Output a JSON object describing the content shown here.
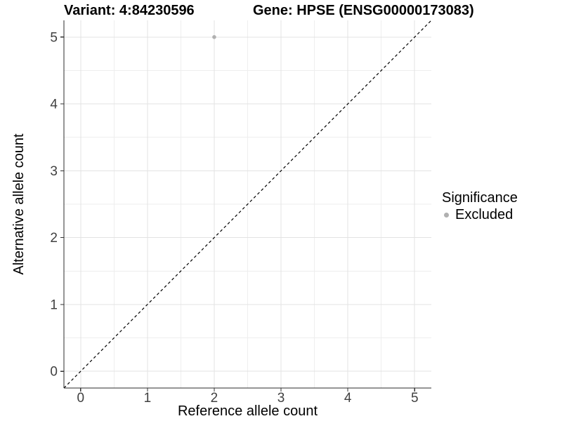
{
  "header": {
    "variant_title": "Variant: 4:84230596",
    "gene_title": "Gene: HPSE (ENSG00000173083)"
  },
  "axes": {
    "x_label": "Reference allele count",
    "y_label": "Alternative allele count"
  },
  "legend": {
    "title": "Significance",
    "items": [
      {
        "label": "Excluded",
        "color": "#b0b0b0"
      }
    ]
  },
  "colors": {
    "background": "#ffffff",
    "grid_major": "#e3e3e3",
    "grid_minor": "#eeeeee",
    "axis_line": "#2b2b2b",
    "tick_mark": "#333333",
    "tick_label": "#404040",
    "title_text": "#000000",
    "point": "#b0b0b0",
    "reference_line": "#000000"
  },
  "chart_data": {
    "type": "scatter",
    "title_left": "Variant: 4:84230596",
    "title_right": "Gene: HPSE (ENSG00000173083)",
    "xlabel": "Reference allele count",
    "ylabel": "Alternative allele count",
    "xlim": [
      -0.25,
      5.25
    ],
    "ylim": [
      -0.25,
      5.25
    ],
    "x_ticks": [
      0,
      1,
      2,
      3,
      4,
      5
    ],
    "y_ticks": [
      0,
      1,
      2,
      3,
      4,
      5
    ],
    "minor_grid_step": 0.5,
    "grid": true,
    "legend_position": "right-middle",
    "series": [
      {
        "name": "Excluded",
        "color": "#b0b0b0",
        "point_radius": 2.8,
        "points": [
          [
            2,
            5
          ]
        ]
      }
    ],
    "reference_line": {
      "slope": 1,
      "intercept": 0,
      "linetype": "dashed",
      "color": "#000000"
    }
  }
}
